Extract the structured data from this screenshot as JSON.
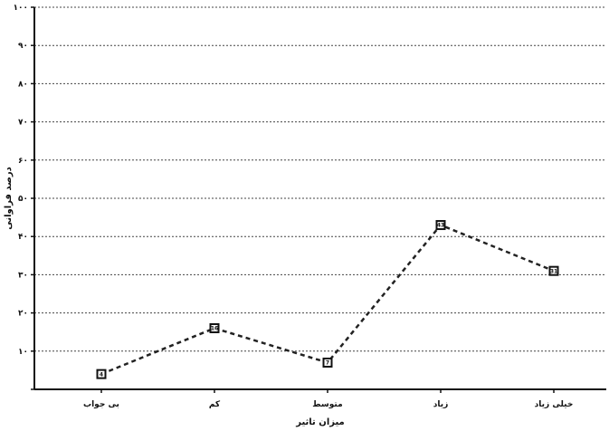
{
  "chart_data": {
    "type": "line",
    "title": "",
    "xlabel": "میزان تاثیر",
    "ylabel": "درصد فراوانی",
    "categories": [
      "بی جواب",
      "کم",
      "متوسط",
      "زیاد",
      "خیلی زیاد"
    ],
    "series": [
      {
        "values": [
          4,
          16,
          7,
          43,
          31
        ],
        "point_labels": [
          "4",
          "16",
          "7",
          "43",
          "31"
        ]
      }
    ],
    "ylim": [
      0,
      100
    ],
    "yticks": [
      {
        "value": 0,
        "label": ""
      },
      {
        "value": 10,
        "label": "۱۰"
      },
      {
        "value": 20,
        "label": "۲۰"
      },
      {
        "value": 30,
        "label": "۳۰"
      },
      {
        "value": 40,
        "label": "۴۰"
      },
      {
        "value": 50,
        "label": "۵۰"
      },
      {
        "value": 60,
        "label": "۶۰"
      },
      {
        "value": 70,
        "label": "۷۰"
      },
      {
        "value": 80,
        "label": "۸۰"
      },
      {
        "value": 90,
        "label": "۹۰"
      },
      {
        "value": 100,
        "label": "۱۰۰"
      }
    ],
    "grid": true,
    "gridline_style": "dotted",
    "legend": "none",
    "line_style": "dashed",
    "colors": {
      "line": "#222222",
      "grid": "#444444",
      "axis": "#111111"
    }
  }
}
